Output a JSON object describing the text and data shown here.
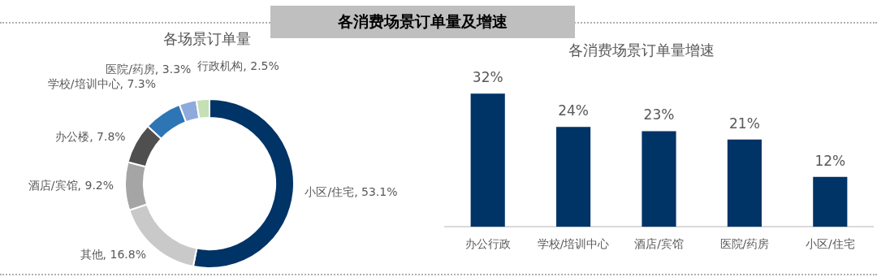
{
  "chart_data": [
    {
      "type": "other",
      "title": "各消费场景订单量及增速"
    },
    {
      "type": "donut",
      "title": "各场景订单量",
      "categories": [
        "小区/住宅",
        "其他",
        "酒店/宾馆",
        "办公楼",
        "学校/培训中心",
        "医院/药房",
        "行政机构"
      ],
      "values": [
        53.1,
        16.8,
        9.2,
        7.8,
        7.3,
        3.3,
        2.5
      ],
      "value_labels": [
        "53.1%",
        "16.8%",
        "9.2%",
        "7.8%",
        "7.3%",
        "3.3%",
        "2.5%"
      ],
      "colors": [
        "#003366",
        "#c9c9c9",
        "#a5a5a5",
        "#4f4f4f",
        "#2e75b6",
        "#8eaadc",
        "#c5e0b4"
      ],
      "legend": false
    },
    {
      "type": "bar",
      "title": "各消费场景订单量增速",
      "categories": [
        "办公行政",
        "学校/培训中心",
        "酒店/宾馆",
        "医院/药房",
        "小区/住宅"
      ],
      "values": [
        32,
        24,
        23,
        21,
        12
      ],
      "value_labels": [
        "32%",
        "24%",
        "23%",
        "21%",
        "12%"
      ],
      "color": "#003366",
      "legend": false,
      "grid": false
    }
  ]
}
